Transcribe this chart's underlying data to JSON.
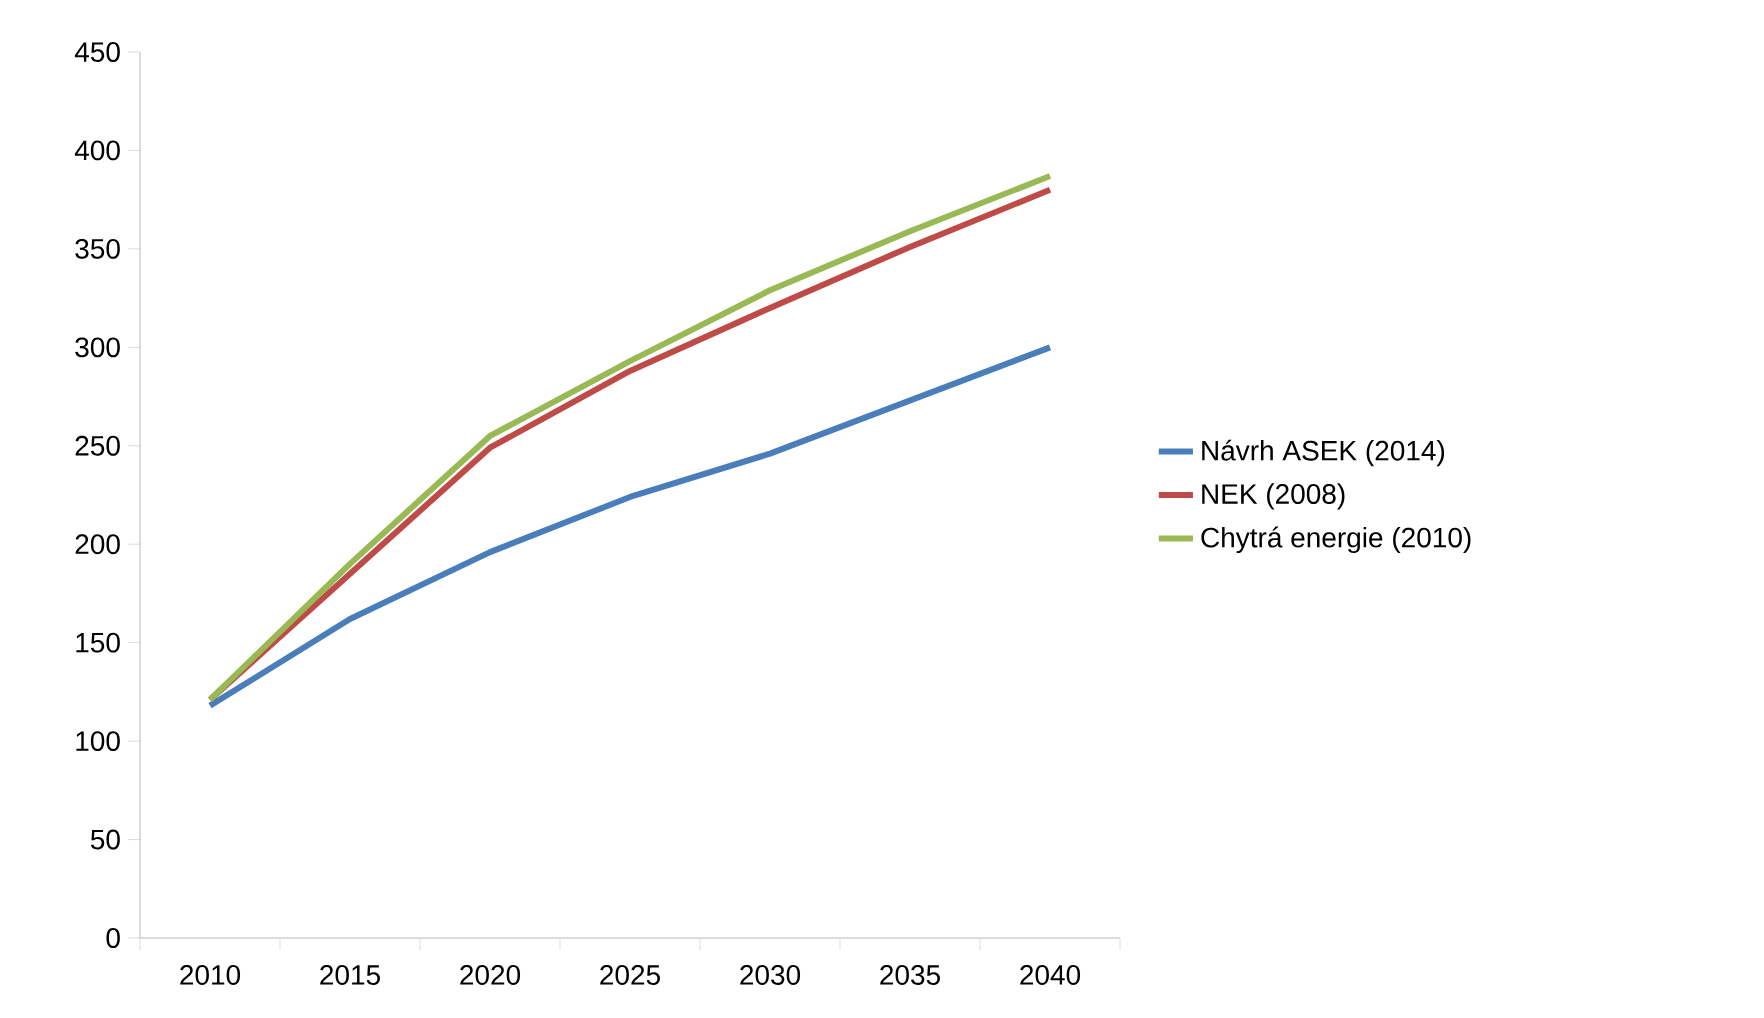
{
  "chart_data": {
    "type": "line",
    "categories": [
      "2010",
      "2015",
      "2020",
      "2025",
      "2030",
      "2035",
      "2040"
    ],
    "ylim": [
      0,
      450
    ],
    "yticks": [
      0,
      50,
      100,
      150,
      200,
      250,
      300,
      350,
      400,
      450
    ],
    "grid": false,
    "legend": "right",
    "marker": "none",
    "line_style": "solid",
    "series": [
      {
        "name": "Návrh ASEK (2014)",
        "color": "#4a7ebb",
        "values": [
          118,
          162,
          196,
          224,
          246,
          273,
          300
        ]
      },
      {
        "name": "NEK (2008)",
        "color": "#be4b48",
        "values": [
          121,
          185,
          249,
          288,
          320,
          351,
          380
        ]
      },
      {
        "name": "Chytrá energie (2010)",
        "color": "#98b954",
        "values": [
          121,
          190,
          255,
          293,
          329,
          359,
          387
        ]
      }
    ]
  }
}
